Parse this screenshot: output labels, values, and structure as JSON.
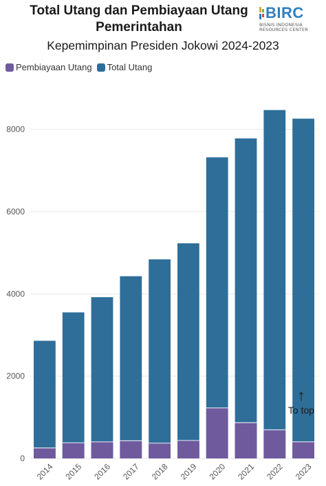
{
  "header": {
    "title": "Total Utang dan Pembiayaan Utang Pemerintahan",
    "subtitle": "Kepemimpinan Presiden Jokowi 2024-2023"
  },
  "logo": {
    "word": "BIRC",
    "line1": "BISNIS INDONESIA",
    "line2": "RESOURCES CENTER",
    "icon": "birc-logo-mark"
  },
  "to_top": {
    "arrow": "↑",
    "label": "To top"
  },
  "colors": {
    "total": "#2e6e99",
    "financing": "#6f5a9e",
    "grid": "#e6e6e6",
    "axis_text": "#555555"
  },
  "chart_data": {
    "type": "bar",
    "title": "Total Utang dan Pembiayaan Utang Pemerintahan",
    "subtitle": "Kepemimpinan Presiden Jokowi 2024-2023",
    "categories": [
      "2014",
      "2015",
      "2016",
      "2017",
      "2018",
      "2019",
      "2020",
      "2021",
      "2022",
      "2023"
    ],
    "series": [
      {
        "name": "Pembiayaan Utang",
        "values": [
          255,
          380,
          403,
          429,
          372,
          437,
          1229,
          870,
          696,
          404
        ]
      },
      {
        "name": "Total Utang",
        "values": [
          2860,
          3550,
          3920,
          4430,
          4840,
          5230,
          7320,
          7780,
          8470,
          8260
        ]
      }
    ],
    "overlap": true,
    "yticks": [
      0,
      2000,
      4000,
      6000,
      8000
    ],
    "ylim": [
      0,
      9000
    ],
    "grid": true,
    "legend": "top-left",
    "xlabel": "",
    "ylabel": ""
  }
}
